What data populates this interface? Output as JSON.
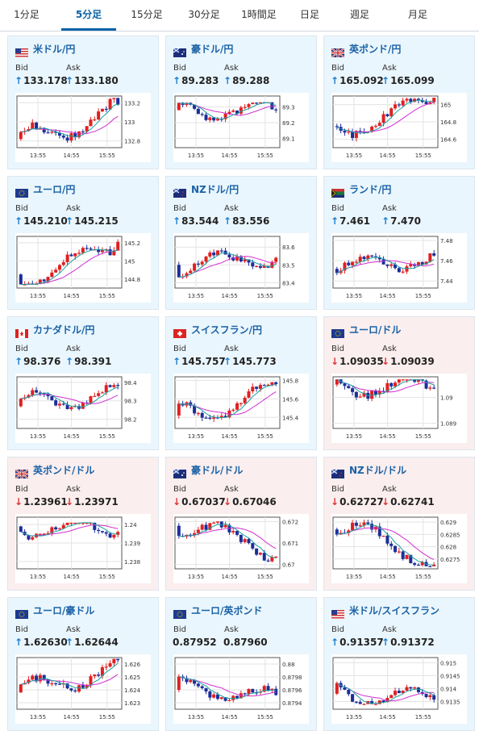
{
  "tabs": [
    "1分足",
    "5分足",
    "15分足",
    "30分足",
    "1時間足",
    "日足",
    "週足",
    "月足"
  ],
  "active_tab": 1,
  "bid_label": "Bid",
  "ask_label": "Ask",
  "colors": {
    "accent": "#0a64a8",
    "up_arrow": "#1a7fd0",
    "down_arrow": "#dd3333",
    "candle_up": "#e02020",
    "candle_down": "#1c2e9a",
    "ma_short": "#1aa0a0",
    "ma_long": "#d030d0"
  },
  "pairs": [
    {
      "name": "米ドル/円",
      "flag": "us",
      "trend": "up",
      "bid_arrow": "up",
      "bid": "133.178",
      "ask_arrow": "up",
      "ask": "133.180",
      "chart": {
        "x_labels": [
          "13:55",
          "14:55",
          "15:55"
        ],
        "y_ticks": [
          "133.2",
          "133",
          "132.8"
        ],
        "y_values": [
          133.2,
          133.0,
          132.8
        ],
        "ylim": [
          132.73,
          133.27
        ],
        "start": 132.82,
        "end": 133.18,
        "min": 132.78,
        "max": 133.25
      }
    },
    {
      "name": "豪ドル/円",
      "flag": "au",
      "trend": "up",
      "bid_arrow": "up",
      "bid": "89.283",
      "ask_arrow": "up",
      "ask": "89.288",
      "chart": {
        "x_labels": [
          "13:55",
          "14:55",
          "15:55"
        ],
        "y_ticks": [
          "89.3",
          "89.2",
          "89.1"
        ],
        "y_values": [
          89.3,
          89.2,
          89.1
        ],
        "ylim": [
          89.04,
          89.37
        ],
        "start": 89.28,
        "end": 89.28,
        "min": 89.08,
        "max": 89.33
      }
    },
    {
      "name": "英ポンド/円",
      "flag": "gb",
      "trend": "up",
      "bid_arrow": "up",
      "bid": "165.092",
      "ask_arrow": "up",
      "ask": "165.099",
      "chart": {
        "x_labels": [
          "13:55",
          "14:55",
          "15:55"
        ],
        "y_ticks": [
          "165",
          "164.8",
          "164.6"
        ],
        "y_values": [
          165.0,
          164.8,
          164.6
        ],
        "ylim": [
          164.5,
          165.1
        ],
        "start": 164.75,
        "end": 165.09,
        "min": 164.55,
        "max": 165.08
      }
    },
    {
      "name": "ユーロ/円",
      "flag": "eu",
      "trend": "up",
      "bid_arrow": "up",
      "bid": "145.210",
      "ask_arrow": "up",
      "ask": "145.215",
      "chart": {
        "x_labels": [
          "13:55",
          "14:55",
          "15:55"
        ],
        "y_ticks": [
          "145.2",
          "145",
          "144.8"
        ],
        "y_values": [
          145.2,
          145.0,
          144.8
        ],
        "ylim": [
          144.7,
          145.27
        ],
        "start": 144.85,
        "end": 145.21,
        "min": 144.74,
        "max": 145.24
      }
    },
    {
      "name": "NZドル/円",
      "flag": "nz",
      "trend": "up",
      "bid_arrow": "up",
      "bid": "83.544",
      "ask_arrow": "up",
      "ask": "83.556",
      "chart": {
        "x_labels": [
          "13:55",
          "14:55",
          "15:55"
        ],
        "y_ticks": [
          "83.6",
          "83.5",
          "83.4"
        ],
        "y_values": [
          83.6,
          83.5,
          83.4
        ],
        "ylim": [
          83.37,
          83.66
        ],
        "start": 83.5,
        "end": 83.54,
        "min": 83.4,
        "max": 83.63
      }
    },
    {
      "name": "ランド/円",
      "flag": "za",
      "trend": "up",
      "bid_arrow": "up",
      "bid": "7.461",
      "ask_arrow": "up",
      "ask": "7.470",
      "chart": {
        "x_labels": [
          "13:55",
          "14:55",
          "15:55"
        ],
        "y_ticks": [
          "7.48",
          "7.46",
          "7.44"
        ],
        "y_values": [
          7.48,
          7.46,
          7.44
        ],
        "ylim": [
          7.433,
          7.484
        ],
        "start": 7.452,
        "end": 7.465,
        "min": 7.437,
        "max": 7.478
      }
    },
    {
      "name": "カナダドル/円",
      "flag": "ca",
      "trend": "up",
      "bid_arrow": "up",
      "bid": "98.376",
      "ask_arrow": "up",
      "ask": "98.391",
      "chart": {
        "x_labels": [
          "13:55",
          "14:55",
          "15:55"
        ],
        "y_ticks": [
          "98.4",
          "98.3",
          "98.2"
        ],
        "y_values": [
          98.4,
          98.3,
          98.2
        ],
        "ylim": [
          98.15,
          98.43
        ],
        "start": 98.27,
        "end": 98.38,
        "min": 98.17,
        "max": 98.41
      }
    },
    {
      "name": "スイスフラン/円",
      "flag": "ch",
      "trend": "up",
      "bid_arrow": "up",
      "bid": "145.757",
      "ask_arrow": "up",
      "ask": "145.773",
      "chart": {
        "x_labels": [
          "13:55",
          "14:55",
          "15:55"
        ],
        "y_ticks": [
          "145.8",
          "145.6",
          "145.4"
        ],
        "y_values": [
          145.8,
          145.6,
          145.4
        ],
        "ylim": [
          145.28,
          145.84
        ],
        "start": 145.42,
        "end": 145.76,
        "min": 145.33,
        "max": 145.8
      }
    },
    {
      "name": "ユーロ/ドル",
      "flag": "eu",
      "trend": "down",
      "bid_arrow": "down",
      "bid": "1.09035",
      "ask_arrow": "down",
      "ask": "1.09039",
      "chart": {
        "x_labels": [
          "13:55",
          "14:55",
          "15:55"
        ],
        "y_ticks": [
          "1.09",
          "1.089"
        ],
        "y_values": [
          1.09,
          1.089
        ],
        "ylim": [
          1.0888,
          1.0908
        ],
        "start": 1.0905,
        "end": 1.09035,
        "min": 1.0889,
        "max": 1.0907
      }
    },
    {
      "name": "英ポンド/ドル",
      "flag": "gb",
      "trend": "down",
      "bid_arrow": "down",
      "bid": "1.23961",
      "ask_arrow": "down",
      "ask": "1.23971",
      "chart": {
        "x_labels": [
          "13:55",
          "14:55",
          "15:55"
        ],
        "y_ticks": [
          "1.24",
          "1.239",
          "1.238"
        ],
        "y_values": [
          1.24,
          1.239,
          1.238
        ],
        "ylim": [
          1.2376,
          1.2404
        ],
        "start": 1.2399,
        "end": 1.2396,
        "min": 1.2379,
        "max": 1.2401
      }
    },
    {
      "name": "豪ドル/ドル",
      "flag": "au",
      "trend": "down",
      "bid_arrow": "down",
      "bid": "0.67037",
      "ask_arrow": "down",
      "ask": "0.67046",
      "chart": {
        "x_labels": [
          "13:55",
          "14:55",
          "15:55"
        ],
        "y_ticks": [
          "0.672",
          "0.671",
          "0.67"
        ],
        "y_values": [
          0.672,
          0.671,
          0.67
        ],
        "ylim": [
          0.6698,
          0.6722
        ],
        "start": 0.6718,
        "end": 0.67037,
        "min": 0.6701,
        "max": 0.672
      }
    },
    {
      "name": "NZドル/ドル",
      "flag": "nz",
      "trend": "down",
      "bid_arrow": "down",
      "bid": "0.62727",
      "ask_arrow": "down",
      "ask": "0.62741",
      "chart": {
        "x_labels": [
          "13:55",
          "14:55",
          "15:55"
        ],
        "y_ticks": [
          "0.629",
          "0.6285",
          "0.628",
          "0.6275"
        ],
        "y_values": [
          0.629,
          0.6285,
          0.628,
          0.6275
        ],
        "ylim": [
          0.6271,
          0.6292
        ],
        "start": 0.6287,
        "end": 0.62727,
        "min": 0.6272,
        "max": 0.6291
      }
    },
    {
      "name": "ユーロ/豪ドル",
      "flag": "eu",
      "trend": "up",
      "bid_arrow": "up",
      "bid": "1.62630",
      "ask_arrow": "up",
      "ask": "1.62644",
      "chart": {
        "x_labels": [
          "13:55",
          "14:55",
          "15:55"
        ],
        "y_ticks": [
          "1.626",
          "1.625",
          "1.624",
          "1.623"
        ],
        "y_values": [
          1.626,
          1.625,
          1.624,
          1.623
        ],
        "ylim": [
          1.6225,
          1.6265
        ],
        "start": 1.6238,
        "end": 1.6263,
        "min": 1.6228,
        "max": 1.6264
      }
    },
    {
      "name": "ユーロ/英ポンド",
      "flag": "eu",
      "trend": "flat",
      "bid_arrow": "",
      "bid": "0.87952",
      "ask_arrow": "",
      "ask": "0.87960",
      "chart": {
        "x_labels": [
          "13:55",
          "14:55",
          "15:55"
        ],
        "y_ticks": [
          "0.88",
          "0.8798",
          "0.8796",
          "0.8794"
        ],
        "y_values": [
          0.88,
          0.8798,
          0.8796,
          0.8794
        ],
        "ylim": [
          0.8793,
          0.8801
        ],
        "start": 0.8796,
        "end": 0.87952,
        "min": 0.8794,
        "max": 0.88
      }
    },
    {
      "name": "米ドル/スイスフラン",
      "flag": "us",
      "trend": "up",
      "bid_arrow": "up",
      "bid": "0.91357",
      "ask_arrow": "up",
      "ask": "0.91372",
      "chart": {
        "x_labels": [
          "13:55",
          "14:55",
          "15:55"
        ],
        "y_ticks": [
          "0.915",
          "0.9145",
          "0.914",
          "0.9135"
        ],
        "y_values": [
          0.915,
          0.9145,
          0.914,
          0.9135
        ],
        "ylim": [
          0.9132,
          0.9152
        ],
        "start": 0.9138,
        "end": 0.91357,
        "min": 0.9134,
        "max": 0.915
      }
    }
  ]
}
